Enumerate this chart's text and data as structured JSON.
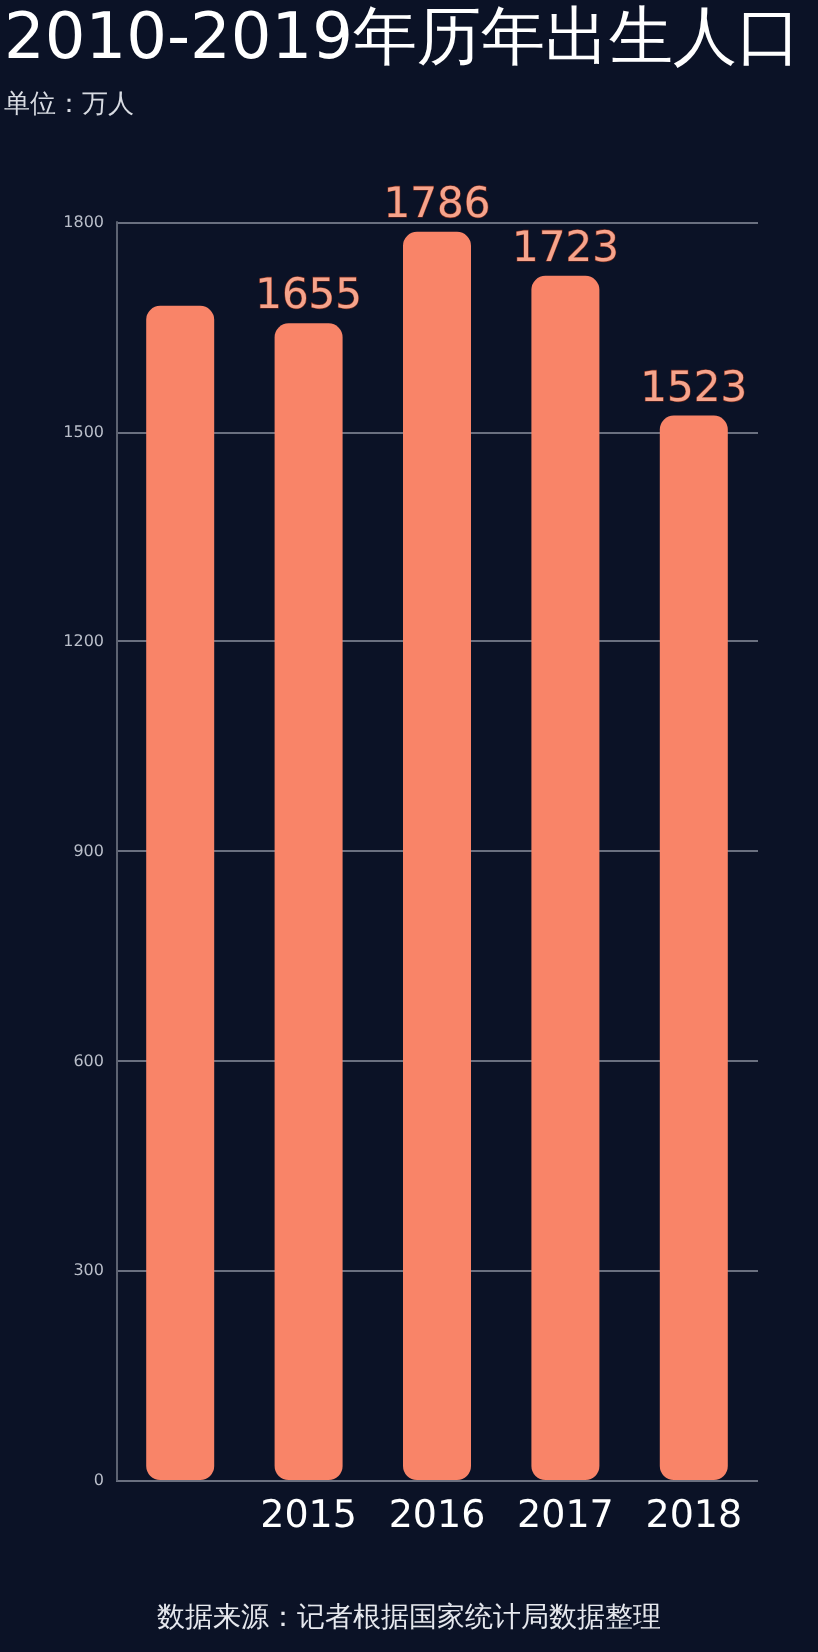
{
  "chart_data": {
    "type": "bar",
    "title": "2010-2019年历年出生人口",
    "subtitle": "单位：万人",
    "annotations": [
      "数据来源：记者根据国家统计局数据整理"
    ],
    "categories": [
      null,
      "2015",
      "2016",
      "2017",
      "2018"
    ],
    "values": [
      1680,
      1655,
      1786,
      1723,
      1523
    ],
    "value_labels": [
      null,
      "1655",
      "1786",
      "1723",
      "1523"
    ],
    "color": "#f98468",
    "ylim": [
      0,
      1800
    ],
    "yticks": [
      0,
      300,
      600,
      900,
      1200,
      1500,
      1800
    ],
    "grid": "y"
  }
}
